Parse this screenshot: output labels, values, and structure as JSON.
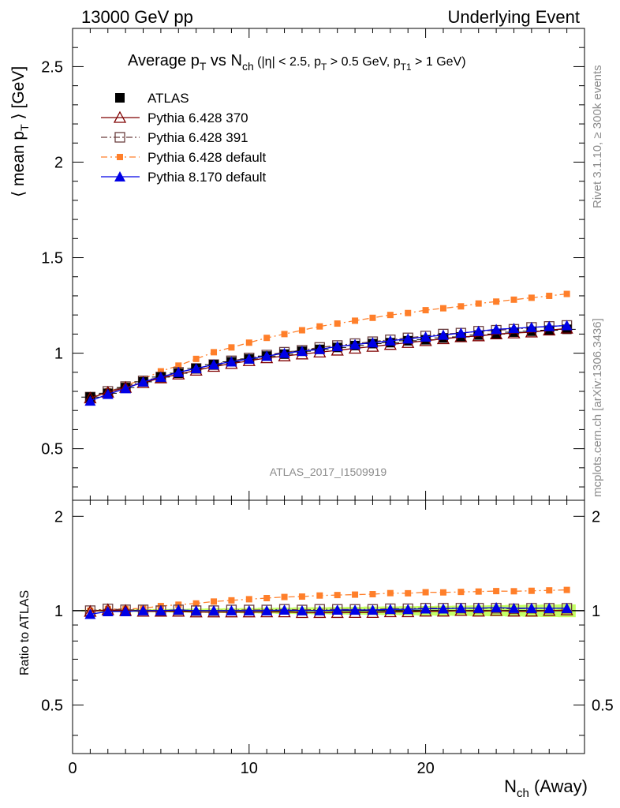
{
  "header": {
    "left": "13000 GeV pp",
    "right": "Underlying Event"
  },
  "side_labels": {
    "rivet": "Rivet 3.1.10, ≥ 300k events",
    "mcplots": "mcplots.cern.ch [arXiv:1306.3436]"
  },
  "watermark": "ATLAS_2017_I1509919",
  "colors": {
    "atlas": "#000000",
    "p6_370": "#7f0000",
    "p6_391": "#6b3f3f",
    "p6_default": "#ff7f2a",
    "p8_default": "#0000e6",
    "band_yellow": "#ffff66",
    "band_green": "#99ff66"
  },
  "chart_data": {
    "type": "line",
    "title": {
      "parts": [
        "Average p",
        "T",
        " vs N",
        "ch",
        " (|η| < 2.5, p",
        "T",
        " > 0.5 GeV, p",
        "T1",
        " > 1 GeV)"
      ]
    },
    "ylabel": {
      "parts": [
        "⟨ mean p",
        "T",
        " ⟩ [GeV]"
      ]
    },
    "xlabel": {
      "parts": [
        "N",
        "ch",
        " (Away)"
      ]
    },
    "ratio_ylabel": "Ratio to ATLAS",
    "xlim": [
      0,
      29
    ],
    "ylim": [
      0.23,
      2.7
    ],
    "ratio_ylim": [
      0.35,
      2.25
    ],
    "xticks": [
      0,
      10,
      20
    ],
    "yticks": [
      0.5,
      1,
      1.5,
      2,
      2.5
    ],
    "ratio_yticks": [
      0.5,
      1,
      2
    ],
    "x": [
      1,
      2,
      3,
      4,
      5,
      6,
      7,
      8,
      9,
      10,
      11,
      12,
      13,
      14,
      15,
      16,
      17,
      18,
      19,
      20,
      21,
      22,
      23,
      24,
      25,
      26,
      27,
      28
    ],
    "series": [
      {
        "name": "ATLAS",
        "key": "atlas",
        "marker": "square-filled",
        "values": [
          0.77,
          0.79,
          0.82,
          0.85,
          0.875,
          0.895,
          0.92,
          0.94,
          0.955,
          0.97,
          0.985,
          0.995,
          1.01,
          1.02,
          1.03,
          1.04,
          1.05,
          1.055,
          1.065,
          1.07,
          1.08,
          1.085,
          1.095,
          1.1,
          1.11,
          1.115,
          1.12,
          1.125
        ]
      },
      {
        "name": "Pythia 6.428 370",
        "key": "p6_370",
        "marker": "triangle-open",
        "values": [
          0.765,
          0.795,
          0.82,
          0.845,
          0.87,
          0.89,
          0.91,
          0.93,
          0.945,
          0.96,
          0.975,
          0.985,
          0.995,
          1.005,
          1.015,
          1.025,
          1.035,
          1.045,
          1.055,
          1.065,
          1.075,
          1.085,
          1.09,
          1.1,
          1.105,
          1.11,
          1.12,
          1.13
        ]
      },
      {
        "name": "Pythia 6.428 391",
        "key": "p6_391",
        "marker": "square-open",
        "values": [
          0.77,
          0.8,
          0.825,
          0.855,
          0.875,
          0.9,
          0.92,
          0.94,
          0.96,
          0.975,
          0.99,
          1.005,
          1.015,
          1.03,
          1.04,
          1.05,
          1.06,
          1.07,
          1.08,
          1.09,
          1.1,
          1.105,
          1.115,
          1.12,
          1.125,
          1.135,
          1.14,
          1.145
        ]
      },
      {
        "name": "Pythia 6.428 default",
        "key": "p6_default",
        "marker": "square-small",
        "values": [
          0.77,
          0.8,
          0.83,
          0.865,
          0.905,
          0.935,
          0.97,
          1.005,
          1.03,
          1.055,
          1.08,
          1.1,
          1.12,
          1.14,
          1.155,
          1.17,
          1.185,
          1.2,
          1.21,
          1.225,
          1.235,
          1.245,
          1.26,
          1.27,
          1.28,
          1.29,
          1.3,
          1.31
        ]
      },
      {
        "name": "Pythia 8.170 default",
        "key": "p8_default",
        "marker": "triangle-filled",
        "values": [
          0.75,
          0.785,
          0.815,
          0.85,
          0.875,
          0.9,
          0.92,
          0.94,
          0.955,
          0.97,
          0.985,
          1.0,
          1.01,
          1.02,
          1.035,
          1.045,
          1.055,
          1.065,
          1.075,
          1.085,
          1.095,
          1.105,
          1.115,
          1.125,
          1.13,
          1.135,
          1.14,
          1.145
        ]
      }
    ],
    "legend_position": "top-left"
  }
}
